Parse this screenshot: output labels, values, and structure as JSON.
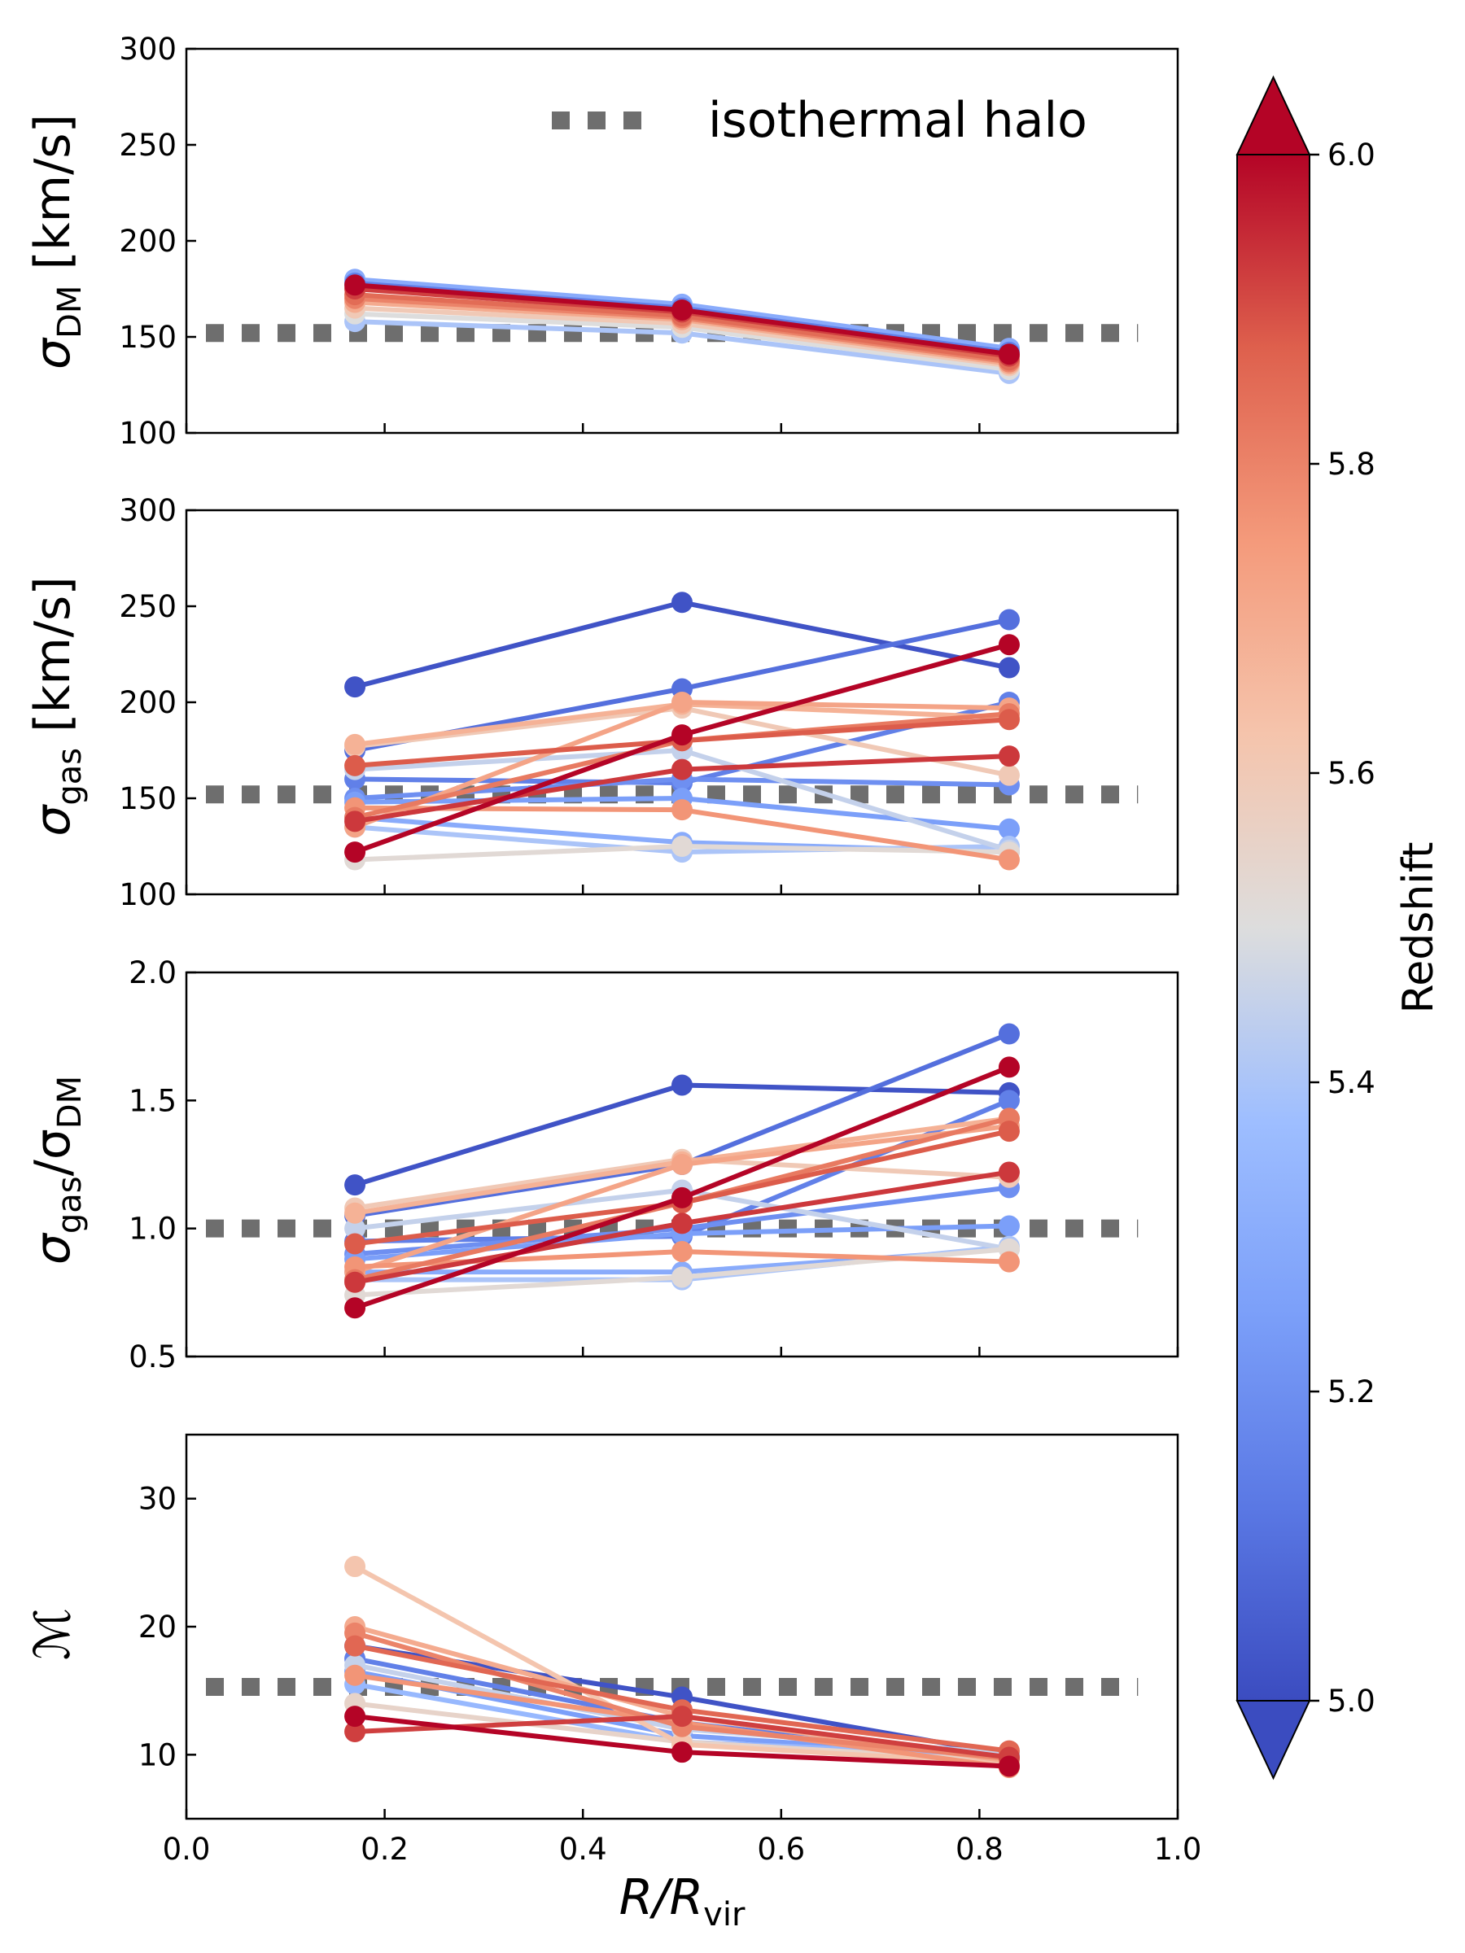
{
  "figure": {
    "x_label_main": "R/R",
    "x_label_sub": "vir",
    "legend_label": "isothermal halo",
    "colorbar_label": "Redshift"
  },
  "colors": {
    "reference_line": "#6e6e6e",
    "frame": "#000000",
    "cmap_low": "#3b4cc0",
    "cmap_mid": "#dddddd",
    "cmap_high": "#b40426"
  },
  "chart_data": [
    {
      "type": "line",
      "panel": "sigma_dm",
      "ylabel_main": "σ",
      "ylabel_sub": "DM",
      "ylabel_suffix": " [km/s]",
      "xlim": [
        0.0,
        1.0
      ],
      "ylim": [
        100,
        300
      ],
      "yticks": [
        "100",
        "150",
        "200",
        "250",
        "300"
      ],
      "xticks": [
        "0.0",
        "0.2",
        "0.4",
        "0.6",
        "0.8",
        "1.0"
      ],
      "show_xticklabels": false,
      "reference_y": 152,
      "x": [
        0.17,
        0.5,
        0.83
      ],
      "series": [
        {
          "z": 5.3,
          "values": [
            180,
            167,
            144
          ]
        },
        {
          "z": 5.15,
          "values": [
            178,
            165,
            142
          ]
        },
        {
          "z": 5.4,
          "values": [
            158,
            152,
            131
          ]
        },
        {
          "z": 5.5,
          "values": [
            162,
            155,
            133
          ]
        },
        {
          "z": 5.6,
          "values": [
            165,
            157,
            135
          ]
        },
        {
          "z": 5.7,
          "values": [
            168,
            159,
            136
          ]
        },
        {
          "z": 5.8,
          "values": [
            170,
            160,
            137
          ]
        },
        {
          "z": 5.85,
          "values": [
            172,
            161,
            138
          ]
        },
        {
          "z": 5.92,
          "values": [
            175,
            163,
            140
          ]
        },
        {
          "z": 6.0,
          "values": [
            177,
            164,
            141
          ]
        }
      ]
    },
    {
      "type": "line",
      "panel": "sigma_gas",
      "ylabel_main": "σ",
      "ylabel_sub": "gas",
      "ylabel_suffix": " [km/s]",
      "xlim": [
        0.0,
        1.0
      ],
      "ylim": [
        100,
        300
      ],
      "yticks": [
        "100",
        "150",
        "200",
        "250",
        "300"
      ],
      "xticks": [
        "0.0",
        "0.2",
        "0.4",
        "0.6",
        "0.8",
        "1.0"
      ],
      "show_xticklabels": false,
      "reference_y": 152,
      "x": [
        0.17,
        0.5,
        0.83
      ],
      "series": [
        {
          "z": 5.02,
          "values": [
            208,
            252,
            218
          ]
        },
        {
          "z": 5.1,
          "values": [
            175,
            207,
            243
          ]
        },
        {
          "z": 5.15,
          "values": [
            160,
            158,
            200
          ]
        },
        {
          "z": 5.2,
          "values": [
            150,
            160,
            157
          ]
        },
        {
          "z": 5.25,
          "values": [
            148,
            150,
            134
          ]
        },
        {
          "z": 5.3,
          "values": [
            140,
            127,
            122
          ]
        },
        {
          "z": 5.4,
          "values": [
            135,
            122,
            125
          ]
        },
        {
          "z": 5.45,
          "values": [
            165,
            175,
            123
          ]
        },
        {
          "z": 5.52,
          "values": [
            118,
            125,
            122
          ]
        },
        {
          "z": 5.6,
          "values": [
            177,
            197,
            162
          ]
        },
        {
          "z": 5.68,
          "values": [
            178,
            199,
            192
          ]
        },
        {
          "z": 5.72,
          "values": [
            135,
            200,
            197
          ]
        },
        {
          "z": 5.76,
          "values": [
            145,
            144,
            118
          ]
        },
        {
          "z": 5.82,
          "values": [
            140,
            180,
            194
          ]
        },
        {
          "z": 5.88,
          "values": [
            167,
            180,
            191
          ]
        },
        {
          "z": 5.93,
          "values": [
            138,
            165,
            172
          ]
        },
        {
          "z": 6.0,
          "values": [
            122,
            183,
            230
          ]
        }
      ]
    },
    {
      "type": "line",
      "panel": "sigma_ratio",
      "ylabel_main": "σ",
      "ylabel_sub": "gas",
      "ylabel_suffix": "/σ",
      "ylabel_sub2": "DM",
      "xlim": [
        0.0,
        1.0
      ],
      "ylim": [
        0.5,
        2.0
      ],
      "yticks": [
        "0.5",
        "1.0",
        "1.5",
        "2.0"
      ],
      "xticks": [
        "0.0",
        "0.2",
        "0.4",
        "0.6",
        "0.8",
        "1.0"
      ],
      "show_xticklabels": false,
      "reference_y": 1.0,
      "x": [
        0.17,
        0.5,
        0.83
      ],
      "series": [
        {
          "z": 5.02,
          "values": [
            1.17,
            1.56,
            1.53
          ]
        },
        {
          "z": 5.1,
          "values": [
            1.05,
            1.25,
            1.76
          ]
        },
        {
          "z": 5.15,
          "values": [
            0.95,
            0.97,
            1.5
          ]
        },
        {
          "z": 5.2,
          "values": [
            0.9,
            1.0,
            1.16
          ]
        },
        {
          "z": 5.25,
          "values": [
            0.88,
            0.98,
            1.01
          ]
        },
        {
          "z": 5.3,
          "values": [
            0.83,
            0.83,
            0.92
          ]
        },
        {
          "z": 5.4,
          "values": [
            0.8,
            0.8,
            0.93
          ]
        },
        {
          "z": 5.45,
          "values": [
            1.0,
            1.15,
            0.92
          ]
        },
        {
          "z": 5.52,
          "values": [
            0.74,
            0.81,
            0.92
          ]
        },
        {
          "z": 5.6,
          "values": [
            1.08,
            1.27,
            1.2
          ]
        },
        {
          "z": 5.68,
          "values": [
            1.06,
            1.26,
            1.43
          ]
        },
        {
          "z": 5.72,
          "values": [
            0.83,
            1.25,
            1.4
          ]
        },
        {
          "z": 5.76,
          "values": [
            0.85,
            0.91,
            0.87
          ]
        },
        {
          "z": 5.82,
          "values": [
            0.8,
            1.1,
            1.43
          ]
        },
        {
          "z": 5.88,
          "values": [
            0.94,
            1.1,
            1.38
          ]
        },
        {
          "z": 5.93,
          "values": [
            0.79,
            1.02,
            1.22
          ]
        },
        {
          "z": 6.0,
          "values": [
            0.69,
            1.12,
            1.63
          ]
        }
      ]
    },
    {
      "type": "line",
      "panel": "mach",
      "ylabel_main": "ℳ",
      "xlim": [
        0.0,
        1.0
      ],
      "ylim": [
        5,
        35
      ],
      "yticks": [
        "10",
        "20",
        "30"
      ],
      "ytick_values": [
        10,
        20,
        30
      ],
      "xticks": [
        "0.0",
        "0.2",
        "0.4",
        "0.6",
        "0.8",
        "1.0"
      ],
      "show_xticklabels": true,
      "reference_y": 15.3,
      "x": [
        0.17,
        0.5,
        0.83
      ],
      "series": [
        {
          "z": 5.02,
          "values": [
            18.5,
            14.5,
            10.0
          ]
        },
        {
          "z": 5.15,
          "values": [
            17.5,
            12.5,
            9.6
          ]
        },
        {
          "z": 5.25,
          "values": [
            16.5,
            11.5,
            9.8
          ]
        },
        {
          "z": 5.35,
          "values": [
            15.5,
            11.0,
            9.9
          ]
        },
        {
          "z": 5.45,
          "values": [
            17.0,
            12.0,
            10.1
          ]
        },
        {
          "z": 5.55,
          "values": [
            14.0,
            11.0,
            9.5
          ]
        },
        {
          "z": 5.62,
          "values": [
            24.7,
            10.8,
            9.3
          ]
        },
        {
          "z": 5.7,
          "values": [
            20.0,
            13.0,
            9.5
          ]
        },
        {
          "z": 5.76,
          "values": [
            16.2,
            12.5,
            9.0
          ]
        },
        {
          "z": 5.8,
          "values": [
            19.5,
            12.2,
            9.7
          ]
        },
        {
          "z": 5.86,
          "values": [
            18.5,
            13.5,
            10.3
          ]
        },
        {
          "z": 5.92,
          "values": [
            11.8,
            13.0,
            9.8
          ]
        },
        {
          "z": 6.0,
          "values": [
            13.0,
            10.2,
            9.1
          ]
        }
      ]
    }
  ],
  "colorbar": {
    "range": [
      5.0,
      6.0
    ],
    "ticks": [
      "5.0",
      "5.2",
      "5.4",
      "5.6",
      "5.8",
      "6.0"
    ],
    "tick_values": [
      5.0,
      5.2,
      5.4,
      5.6,
      5.8,
      6.0
    ],
    "extend": "both"
  }
}
